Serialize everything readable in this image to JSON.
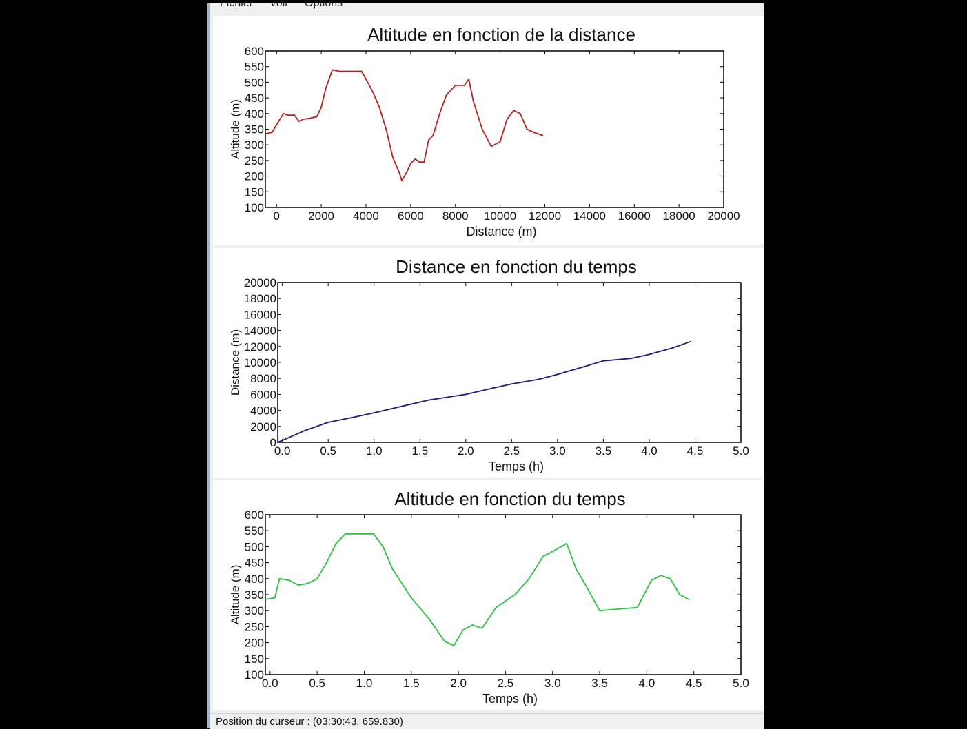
{
  "menu": [
    "Fichier",
    "Voir",
    "Options"
  ],
  "status": "Position du curseur : (03:30:43, 659.830)",
  "colors": {
    "series1": "#c81818",
    "series2": "#1a1a8c",
    "series3": "#22c83a"
  },
  "chart_data": [
    {
      "type": "line",
      "title": "Altitude en fonction de la distance",
      "xlabel": "Distance (m)",
      "ylabel": "Altitude (m)",
      "xlim": [
        -500,
        20000
      ],
      "ylim": [
        100,
        600
      ],
      "xticks": [
        "0",
        "2000",
        "4000",
        "6000",
        "8000",
        "10000",
        "12000",
        "14000",
        "16000",
        "18000",
        "20000"
      ],
      "xtick_values": [
        0,
        2000,
        4000,
        6000,
        8000,
        10000,
        12000,
        14000,
        16000,
        18000,
        20000
      ],
      "yticks": [
        "100",
        "150",
        "200",
        "250",
        "300",
        "350",
        "400",
        "450",
        "500",
        "550",
        "600"
      ],
      "ytick_values": [
        100,
        150,
        200,
        250,
        300,
        350,
        400,
        450,
        500,
        550,
        600
      ],
      "x": [
        -500,
        -200,
        300,
        500,
        800,
        1000,
        1200,
        1500,
        1800,
        2000,
        2200,
        2500,
        2800,
        3200,
        3500,
        3800,
        4000,
        4300,
        4600,
        4900,
        5200,
        5500,
        5600,
        5800,
        6000,
        6200,
        6400,
        6600,
        6800,
        7000,
        7300,
        7600,
        8000,
        8400,
        8600,
        8800,
        9200,
        9600,
        10000,
        10300,
        10600,
        10900,
        11200,
        11500,
        11900
      ],
      "y": [
        335,
        340,
        400,
        395,
        395,
        375,
        382,
        385,
        390,
        420,
        480,
        540,
        535,
        535,
        535,
        535,
        510,
        470,
        420,
        350,
        260,
        210,
        185,
        210,
        240,
        255,
        245,
        245,
        315,
        330,
        400,
        460,
        490,
        490,
        510,
        440,
        350,
        295,
        310,
        380,
        410,
        400,
        350,
        340,
        330
      ]
    },
    {
      "type": "line",
      "title": "Distance en fonction du temps",
      "xlabel": "Temps (h)",
      "ylabel": "Distance (m)",
      "xlim": [
        -0.05,
        5.0
      ],
      "ylim": [
        0,
        20000
      ],
      "xticks": [
        "0.0",
        "0.5",
        "1.0",
        "1.5",
        "2.0",
        "2.5",
        "3.0",
        "3.5",
        "4.0",
        "4.5",
        "5.0"
      ],
      "xtick_values": [
        0,
        0.5,
        1,
        1.5,
        2,
        2.5,
        3,
        3.5,
        4,
        4.5,
        5
      ],
      "yticks": [
        "0",
        "2000",
        "4000",
        "6000",
        "8000",
        "10000",
        "12000",
        "14000",
        "16000",
        "18000",
        "20000"
      ],
      "ytick_values": [
        0,
        2000,
        4000,
        6000,
        8000,
        10000,
        12000,
        14000,
        16000,
        18000,
        20000
      ],
      "x": [
        -0.05,
        0.25,
        0.5,
        0.8,
        1.0,
        1.3,
        1.6,
        2.0,
        2.3,
        2.5,
        2.8,
        3.0,
        3.3,
        3.5,
        3.8,
        4.0,
        4.25,
        4.45
      ],
      "y": [
        0,
        1500,
        2500,
        3200,
        3700,
        4500,
        5300,
        6000,
        6800,
        7300,
        7900,
        8500,
        9500,
        10200,
        10500,
        11000,
        11800,
        12600
      ]
    },
    {
      "type": "line",
      "title": "Altitude en fonction du temps",
      "xlabel": "Temps (h)",
      "ylabel": "Altitude (m)",
      "xlim": [
        -0.05,
        5.0
      ],
      "ylim": [
        100,
        600
      ],
      "xticks": [
        "0.0",
        "0.5",
        "1.0",
        "1.5",
        "2.0",
        "2.5",
        "3.0",
        "3.5",
        "4.0",
        "4.5",
        "5.0"
      ],
      "xtick_values": [
        0,
        0.5,
        1,
        1.5,
        2,
        2.5,
        3,
        3.5,
        4,
        4.5,
        5
      ],
      "yticks": [
        "100",
        "150",
        "200",
        "250",
        "300",
        "350",
        "400",
        "450",
        "500",
        "550",
        "600"
      ],
      "ytick_values": [
        100,
        150,
        200,
        250,
        300,
        350,
        400,
        450,
        500,
        550,
        600
      ],
      "x": [
        -0.05,
        0.05,
        0.1,
        0.2,
        0.3,
        0.4,
        0.5,
        0.6,
        0.7,
        0.8,
        1.0,
        1.1,
        1.2,
        1.3,
        1.5,
        1.7,
        1.85,
        1.95,
        2.05,
        2.15,
        2.25,
        2.4,
        2.5,
        2.6,
        2.75,
        2.9,
        3.0,
        3.15,
        3.25,
        3.35,
        3.5,
        3.7,
        3.9,
        4.05,
        4.15,
        4.25,
        4.35,
        4.45
      ],
      "y": [
        335,
        340,
        400,
        395,
        380,
        385,
        400,
        450,
        510,
        540,
        540,
        540,
        500,
        430,
        340,
        270,
        205,
        190,
        240,
        255,
        245,
        310,
        330,
        350,
        400,
        470,
        485,
        510,
        430,
        380,
        300,
        305,
        310,
        395,
        410,
        400,
        350,
        335
      ]
    }
  ]
}
